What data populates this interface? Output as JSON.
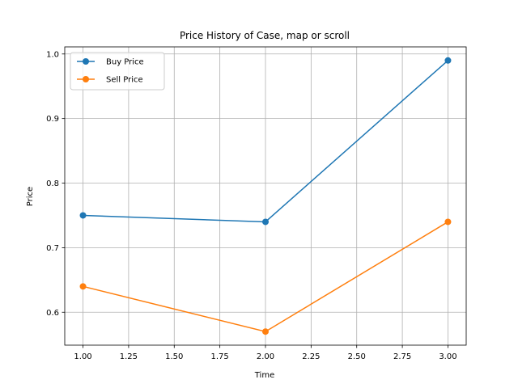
{
  "chart_data": {
    "type": "line",
    "title": "Price History of Case, map or scroll",
    "xlabel": "Time",
    "ylabel": "Price",
    "xlim": [
      0.9,
      3.1
    ],
    "ylim": [
      0.549,
      1.011
    ],
    "xticks": [
      1.0,
      1.25,
      1.5,
      1.75,
      2.0,
      2.25,
      2.5,
      2.75,
      3.0
    ],
    "xtick_labels": [
      "1.00",
      "1.25",
      "1.50",
      "1.75",
      "2.00",
      "2.25",
      "2.50",
      "2.75",
      "3.00"
    ],
    "yticks": [
      0.6,
      0.7,
      0.8,
      0.9,
      1.0
    ],
    "ytick_labels": [
      "0.6",
      "0.7",
      "0.8",
      "0.9",
      "1.0"
    ],
    "grid": true,
    "legend_position": "top-left",
    "series": [
      {
        "name": "Buy Price",
        "color": "#1f77b4",
        "x": [
          1,
          2,
          3
        ],
        "y": [
          0.75,
          0.74,
          0.99
        ]
      },
      {
        "name": "Sell Price",
        "color": "#ff7f0e",
        "x": [
          1,
          2,
          3
        ],
        "y": [
          0.64,
          0.57,
          0.74
        ]
      }
    ]
  }
}
